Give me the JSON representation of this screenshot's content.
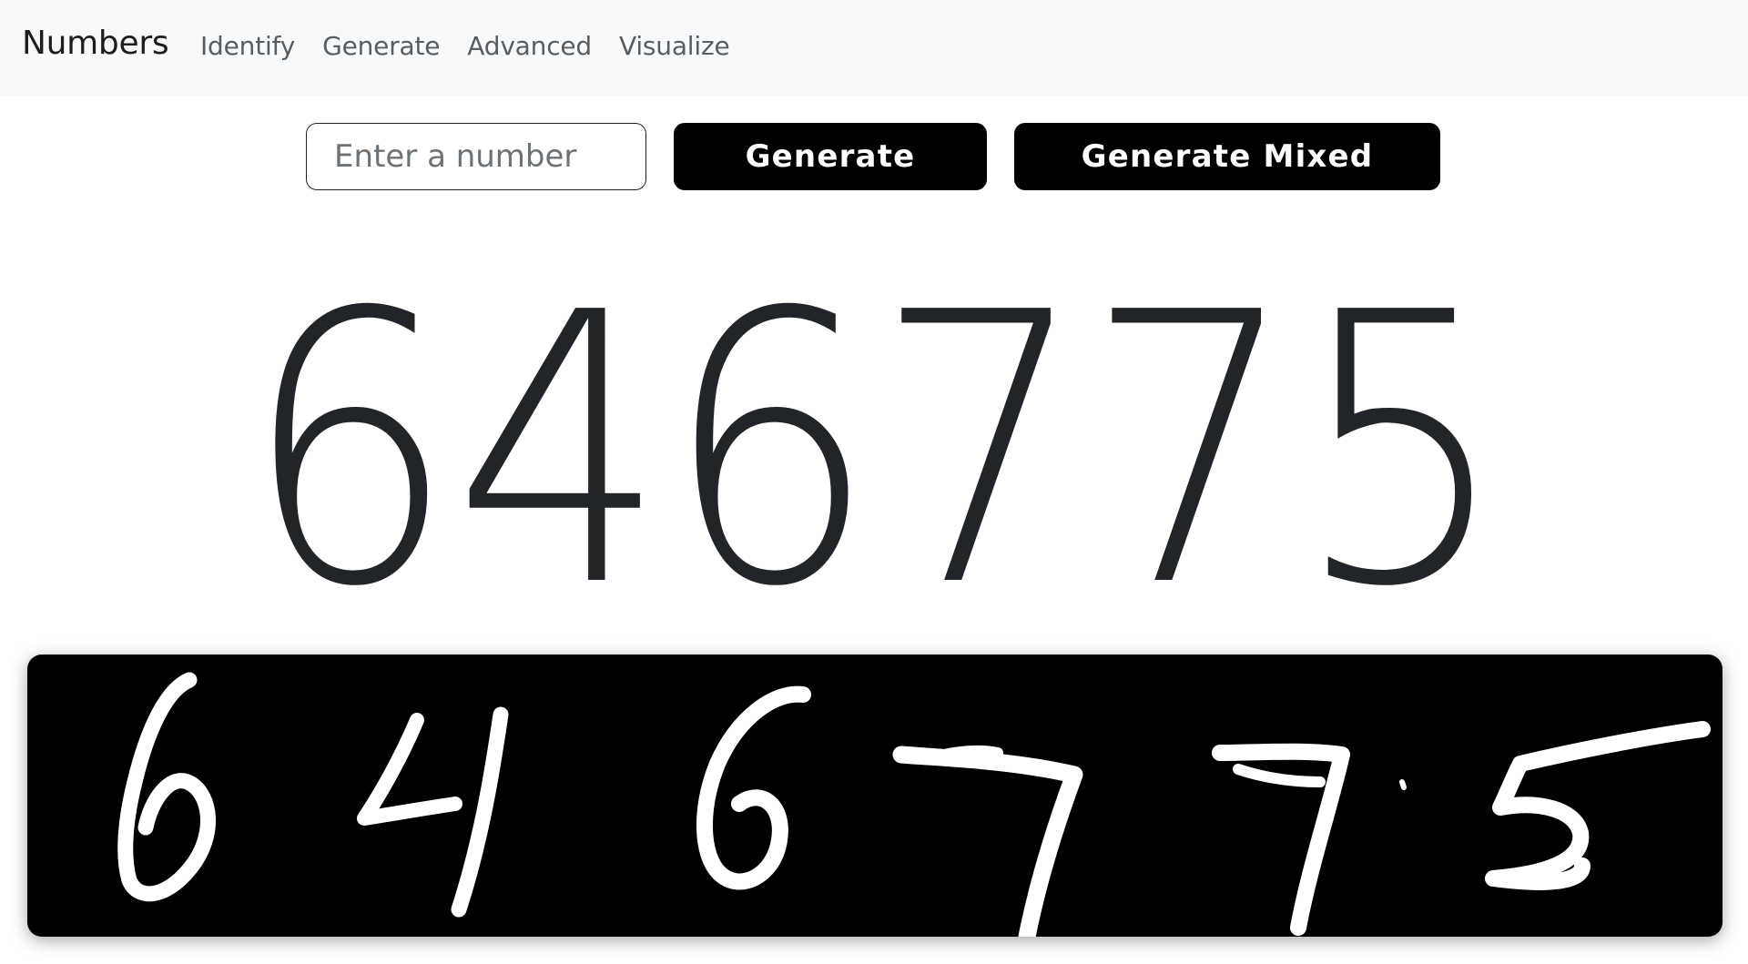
{
  "navbar": {
    "brand": "Numbers",
    "links": [
      "Identify",
      "Generate",
      "Advanced",
      "Visualize"
    ]
  },
  "controls": {
    "input_placeholder": "Enter a number",
    "input_value": "",
    "generate_label": "Generate",
    "generate_mixed_label": "Generate Mixed"
  },
  "result": {
    "number": "646775"
  },
  "handwritten": {
    "digits": [
      "6",
      "4",
      "6",
      "7",
      "7",
      "5"
    ]
  }
}
